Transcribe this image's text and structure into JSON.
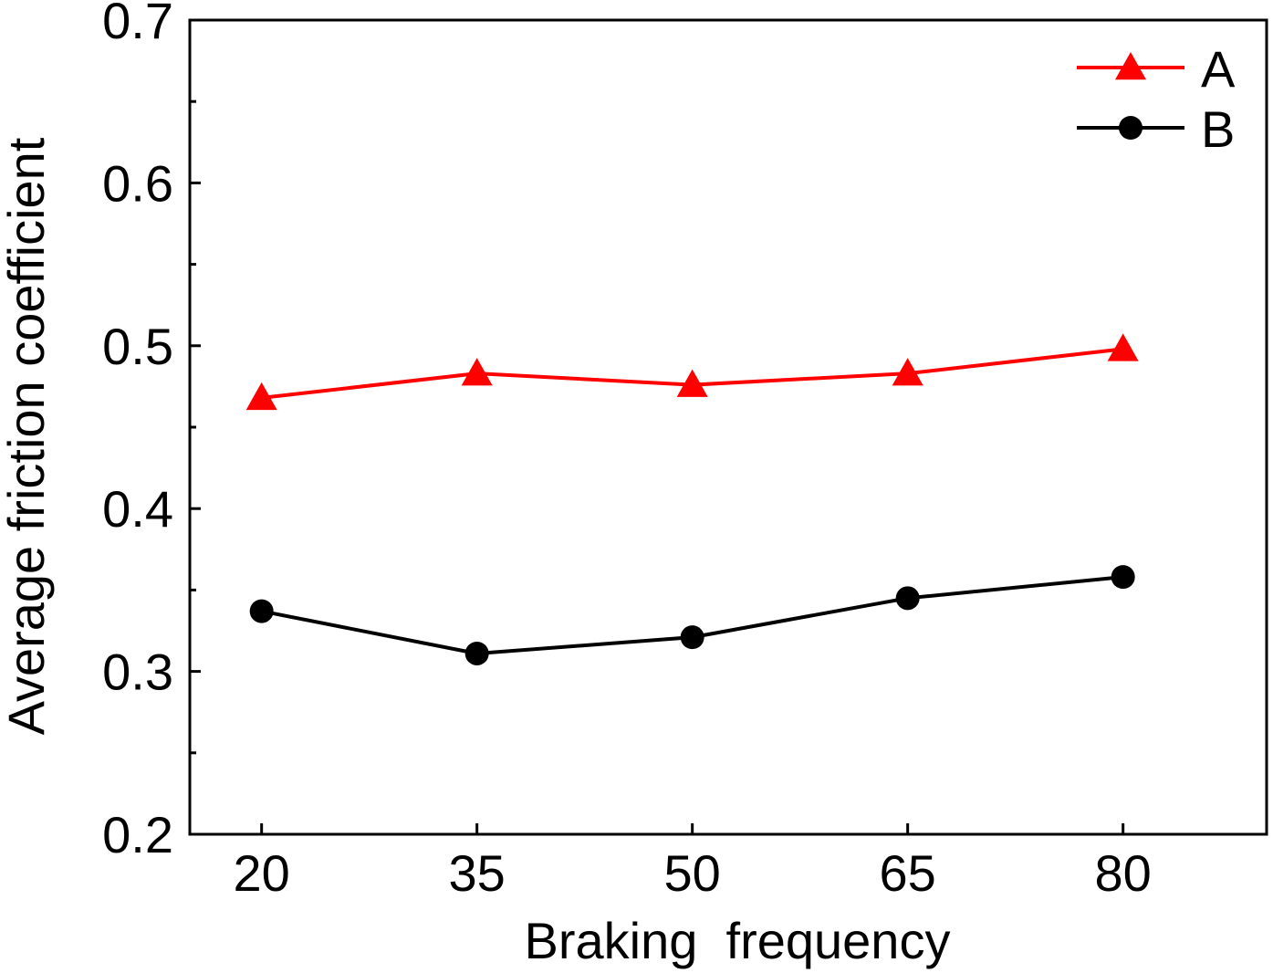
{
  "chart_data": {
    "type": "line",
    "title": "",
    "xlabel": "Braking  frequency",
    "ylabel": "Average friction coefficient",
    "x": [
      20,
      35,
      50,
      65,
      80
    ],
    "x_ticks": [
      "20",
      "35",
      "50",
      "65",
      "80"
    ],
    "xlim": [
      15,
      90
    ],
    "ylim": [
      0.2,
      0.7
    ],
    "y_ticks": [
      "0.2",
      "0.3",
      "0.4",
      "0.5",
      "0.6",
      "0.7"
    ],
    "grid": false,
    "legend_position": "top-right",
    "series": [
      {
        "name": "A",
        "values": [
          0.468,
          0.483,
          0.476,
          0.483,
          0.498
        ],
        "color": "#ff0000",
        "marker": "triangle"
      },
      {
        "name": "B",
        "values": [
          0.337,
          0.311,
          0.321,
          0.345,
          0.358
        ],
        "color": "#000000",
        "marker": "circle"
      }
    ]
  }
}
